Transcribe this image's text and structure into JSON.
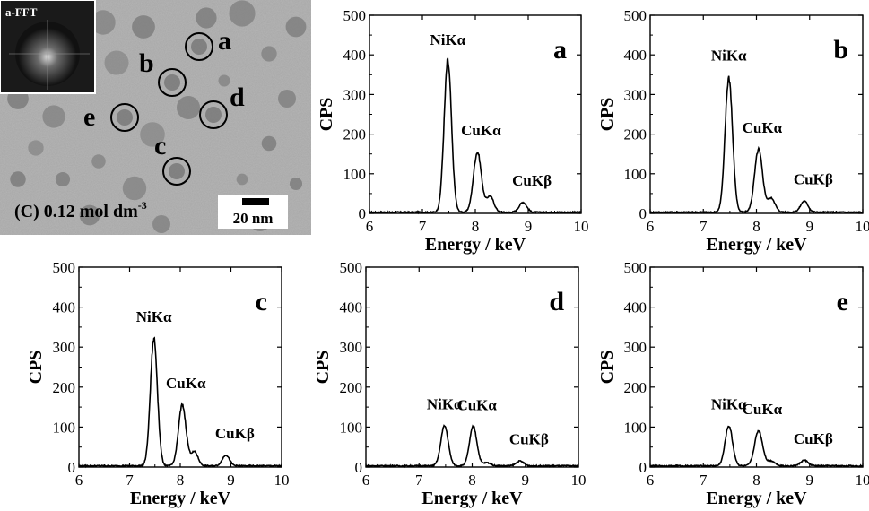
{
  "tem_image": {
    "condition_label": "(C) 0.12 mol dm",
    "condition_superscript": "-3",
    "scale_bar_label": "20 nm",
    "inset_label": "a-FFT",
    "circle_labels": [
      "a",
      "b",
      "c",
      "d",
      "e"
    ]
  },
  "chart_data": [
    {
      "type": "line",
      "panel_label": "a",
      "xlabel": "Energy / keV",
      "ylabel": "CPS",
      "xlim": [
        6,
        10
      ],
      "ylim": [
        0,
        500
      ],
      "xticks": [
        6,
        7,
        8,
        9,
        10
      ],
      "yticks": [
        0,
        100,
        200,
        300,
        400,
        500
      ],
      "peaks": [
        {
          "label": "NiKα",
          "center": 7.48,
          "height": 380,
          "width": 0.07
        },
        {
          "label": "CuKα",
          "center": 8.04,
          "height": 152,
          "width": 0.075
        },
        {
          "label": "CuKβ",
          "center": 8.9,
          "height": 25,
          "width": 0.07
        }
      ],
      "shoulder": {
        "center": 8.28,
        "height": 40,
        "width": 0.07
      },
      "baseline": 3
    },
    {
      "type": "line",
      "panel_label": "b",
      "xlabel": "Energy / keV",
      "ylabel": "CPS",
      "xlim": [
        6,
        10
      ],
      "ylim": [
        0,
        500
      ],
      "xticks": [
        6,
        7,
        8,
        9,
        10
      ],
      "yticks": [
        0,
        100,
        200,
        300,
        400,
        500
      ],
      "peaks": [
        {
          "label": "NiKα",
          "center": 7.48,
          "height": 340,
          "width": 0.07
        },
        {
          "label": "CuKα",
          "center": 8.04,
          "height": 158,
          "width": 0.075
        },
        {
          "label": "CuKβ",
          "center": 8.9,
          "height": 28,
          "width": 0.07
        }
      ],
      "shoulder": {
        "center": 8.28,
        "height": 35,
        "width": 0.07
      },
      "baseline": 3
    },
    {
      "type": "line",
      "panel_label": "c",
      "xlabel": "Energy / keV",
      "ylabel": "CPS",
      "xlim": [
        6,
        10
      ],
      "ylim": [
        0,
        500
      ],
      "xticks": [
        6,
        7,
        8,
        9,
        10
      ],
      "yticks": [
        0,
        100,
        200,
        300,
        400,
        500
      ],
      "peaks": [
        {
          "label": "NiKα",
          "center": 7.48,
          "height": 318,
          "width": 0.07
        },
        {
          "label": "CuKα",
          "center": 8.04,
          "height": 152,
          "width": 0.075
        },
        {
          "label": "CuKβ",
          "center": 8.9,
          "height": 27,
          "width": 0.07
        }
      ],
      "shoulder": {
        "center": 8.28,
        "height": 35,
        "width": 0.07
      },
      "baseline": 3
    },
    {
      "type": "line",
      "panel_label": "d",
      "xlabel": "Energy / keV",
      "ylabel": "CPS",
      "xlim": [
        6,
        10
      ],
      "ylim": [
        0,
        500
      ],
      "xticks": [
        6,
        7,
        8,
        9,
        10
      ],
      "yticks": [
        0,
        100,
        200,
        300,
        400,
        500
      ],
      "peaks": [
        {
          "label": "NiKα",
          "center": 7.48,
          "height": 100,
          "width": 0.07
        },
        {
          "label": "CuKα",
          "center": 8.02,
          "height": 98,
          "width": 0.07
        },
        {
          "label": "CuKβ",
          "center": 8.9,
          "height": 12,
          "width": 0.07
        }
      ],
      "shoulder": {
        "center": 8.28,
        "height": 8,
        "width": 0.07
      },
      "baseline": 3
    },
    {
      "type": "line",
      "panel_label": "e",
      "xlabel": "Energy / keV",
      "ylabel": "CPS",
      "xlim": [
        6,
        10
      ],
      "ylim": [
        0,
        500
      ],
      "xticks": [
        6,
        7,
        8,
        9,
        10
      ],
      "yticks": [
        0,
        100,
        200,
        300,
        400,
        500
      ],
      "peaks": [
        {
          "label": "NiKα",
          "center": 7.48,
          "height": 100,
          "width": 0.07
        },
        {
          "label": "CuKα",
          "center": 8.04,
          "height": 88,
          "width": 0.075
        },
        {
          "label": "CuKβ",
          "center": 8.9,
          "height": 14,
          "width": 0.07
        }
      ],
      "shoulder": {
        "center": 8.28,
        "height": 12,
        "width": 0.07
      },
      "baseline": 3
    }
  ]
}
